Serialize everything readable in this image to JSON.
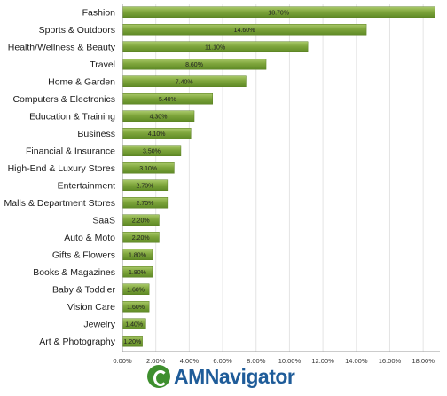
{
  "chart_data": {
    "type": "bar",
    "orientation": "horizontal",
    "categories": [
      "Fashion",
      "Sports & Outdoors",
      "Health/Wellness & Beauty",
      "Travel",
      "Home & Garden",
      "Computers & Electronics",
      "Education & Training",
      "Business",
      "Financial & Insurance",
      "High-End & Luxury Stores",
      "Entertainment",
      "Malls & Department Stores",
      "SaaS",
      "Auto & Moto",
      "Gifts & Flowers",
      "Books & Magazines",
      "Baby & Toddler",
      "Vision Care",
      "Jewelry",
      "Art & Photography"
    ],
    "values": [
      18.7,
      14.6,
      11.1,
      8.6,
      7.4,
      5.4,
      4.3,
      4.1,
      3.5,
      3.1,
      2.7,
      2.7,
      2.2,
      2.2,
      1.8,
      1.8,
      1.6,
      1.6,
      1.4,
      1.2
    ],
    "value_labels": [
      "18.70%",
      "14.60%",
      "11.10%",
      "8.60%",
      "7.40%",
      "5.40%",
      "4.30%",
      "4.10%",
      "3.50%",
      "3.10%",
      "2.70%",
      "2.70%",
      "2.20%",
      "2.20%",
      "1.80%",
      "1.80%",
      "1.60%",
      "1.60%",
      "1.40%",
      "1.20%"
    ],
    "xlim": [
      0,
      19
    ],
    "x_ticks": [
      0,
      2,
      4,
      6,
      8,
      10,
      12,
      14,
      16,
      18
    ],
    "x_tick_labels": [
      "0.00%",
      "2.00%",
      "4.00%",
      "6.00%",
      "8.00%",
      "10.00%",
      "12.00%",
      "14.00%",
      "16.00%",
      "18.00%"
    ],
    "grid": true,
    "bar_color": "#7aa23a",
    "title": "",
    "xlabel": "",
    "ylabel": ""
  },
  "brand": {
    "name": "AMNavigator",
    "text_color": "#1f5c99",
    "mark_color": "#3e8f2e",
    "icon": "navigator-logo-icon"
  }
}
